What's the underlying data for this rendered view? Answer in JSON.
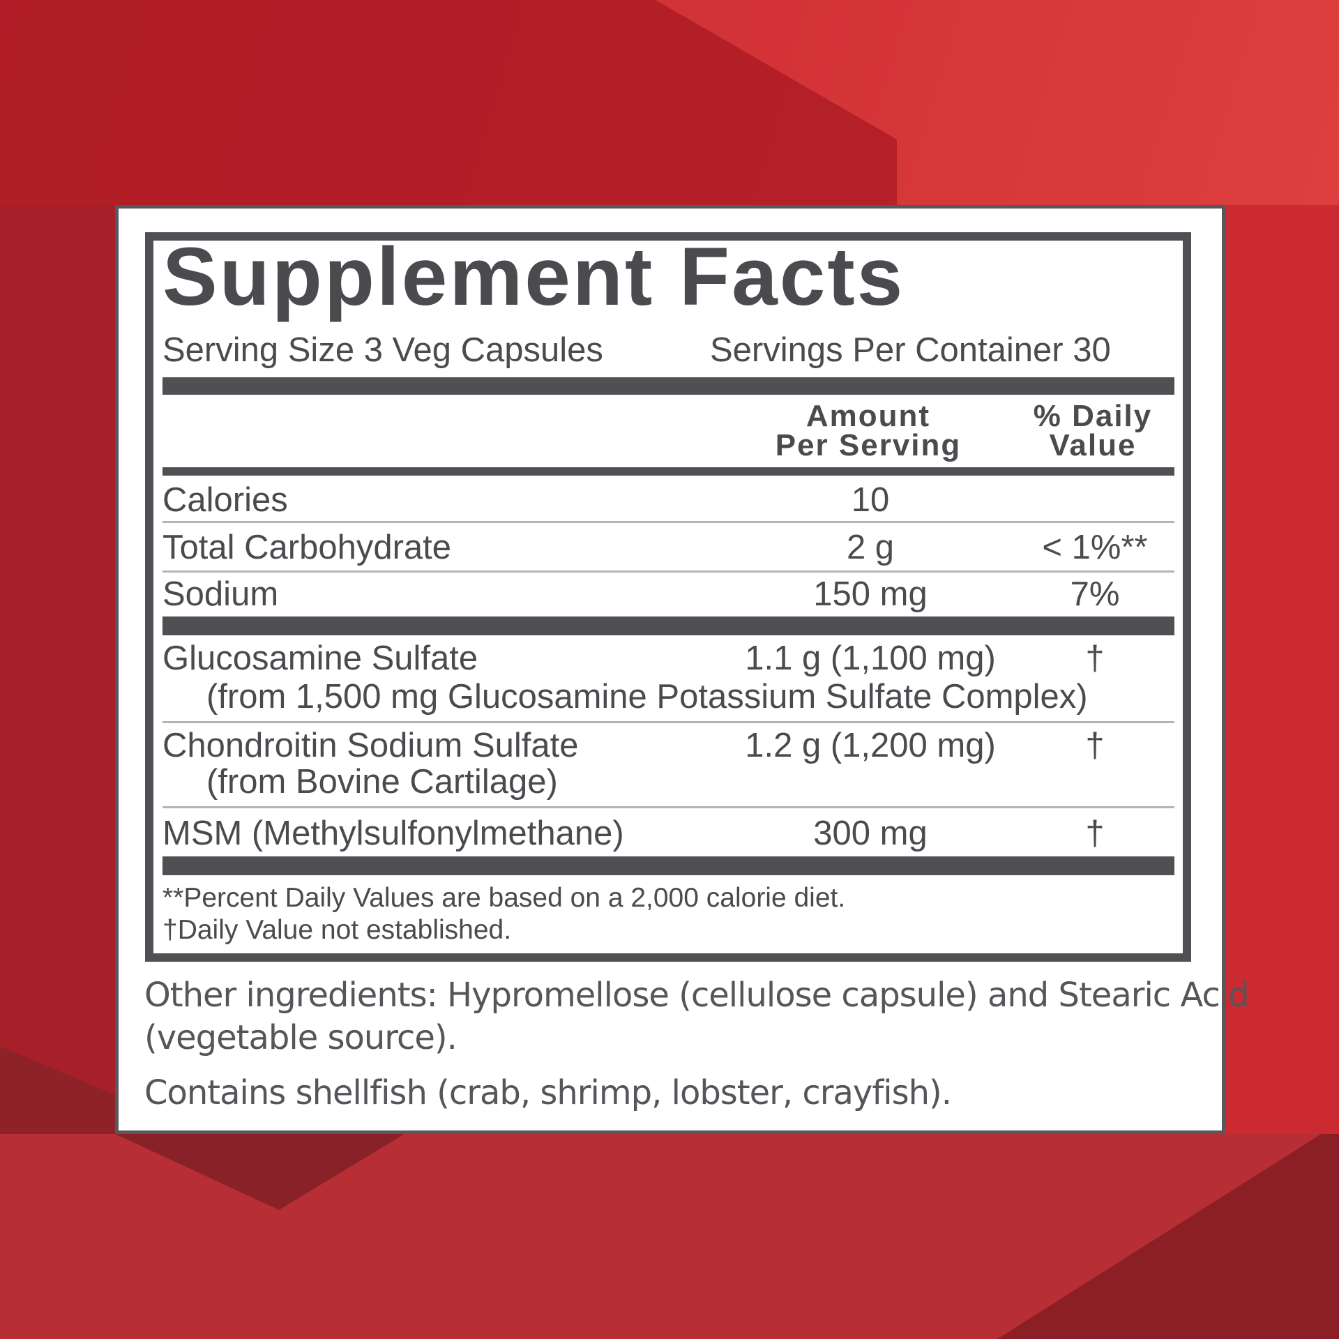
{
  "colors": {
    "background_red": "#c0262e",
    "label_gray": "#4f4f54",
    "panel": "#ffffff"
  },
  "title": "Supplement Facts",
  "serving_size": "Serving Size 3 Veg Capsules",
  "servings_per_container": "Servings Per Container 30",
  "header": {
    "amount_line1": "Amount",
    "amount_line2": "Per Serving",
    "dv_line1": "% Daily",
    "dv_line2": "Value"
  },
  "rows": [
    {
      "name": "Calories",
      "amount": "10",
      "dv": ""
    },
    {
      "name": "Total Carbohydrate",
      "amount": "2 g",
      "dv": "< 1%**"
    },
    {
      "name": "Sodium",
      "amount": "150 mg",
      "dv": "7%"
    },
    {
      "name": "Glucosamine Sulfate",
      "sub": "(from 1,500 mg Glucosamine Potassium Sulfate Complex)",
      "amount": "1.1 g (1,100 mg)",
      "dv": "†"
    },
    {
      "name": "Chondroitin Sodium Sulfate",
      "sub": "(from Bovine Cartilage)",
      "amount": "1.2 g (1,200 mg)",
      "dv": "†"
    },
    {
      "name": "MSM (Methylsulfonylmethane)",
      "amount": "300 mg",
      "dv": "†"
    }
  ],
  "footnotes": [
    "**Percent Daily Values are based on a 2,000 calorie diet.",
    "†Daily Value not established."
  ],
  "other_ingredients": [
    "Other ingredients: Hypromellose (cellulose capsule) and Stearic Acid",
    "(vegetable source)."
  ],
  "allergen": "Contains shellfish (crab, shrimp, lobster, crayfish)."
}
